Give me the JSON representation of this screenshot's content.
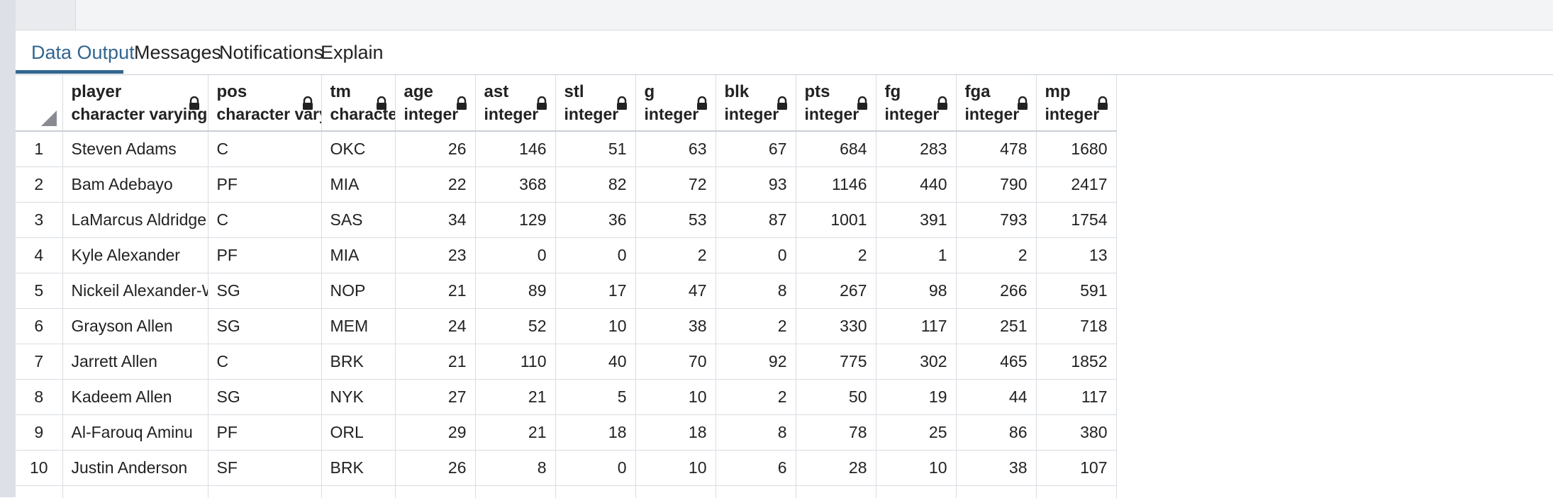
{
  "tabs": [
    {
      "label": "Data Output",
      "active": true
    },
    {
      "label": "Messages",
      "active": false
    },
    {
      "label": "Notifications",
      "active": false
    },
    {
      "label": "Explain",
      "active": false
    }
  ],
  "columns": [
    {
      "name": "player",
      "type": "character varying",
      "align": "left"
    },
    {
      "name": "pos",
      "type": "character varying",
      "align": "left"
    },
    {
      "name": "tm",
      "type": "character va",
      "align": "left"
    },
    {
      "name": "age",
      "type": "integer",
      "align": "right"
    },
    {
      "name": "ast",
      "type": "integer",
      "align": "right"
    },
    {
      "name": "stl",
      "type": "integer",
      "align": "right"
    },
    {
      "name": "g",
      "type": "integer",
      "align": "right"
    },
    {
      "name": "blk",
      "type": "integer",
      "align": "right"
    },
    {
      "name": "pts",
      "type": "integer",
      "align": "right"
    },
    {
      "name": "fg",
      "type": "integer",
      "align": "right"
    },
    {
      "name": "fga",
      "type": "integer",
      "align": "right"
    },
    {
      "name": "mp",
      "type": "integer",
      "align": "right"
    }
  ],
  "rows": [
    {
      "n": "1",
      "cells": [
        "Steven Adams",
        "C",
        "OKC",
        "26",
        "146",
        "51",
        "63",
        "67",
        "684",
        "283",
        "478",
        "1680"
      ]
    },
    {
      "n": "2",
      "cells": [
        "Bam Adebayo",
        "PF",
        "MIA",
        "22",
        "368",
        "82",
        "72",
        "93",
        "1146",
        "440",
        "790",
        "2417"
      ]
    },
    {
      "n": "3",
      "cells": [
        "LaMarcus Aldridge",
        "C",
        "SAS",
        "34",
        "129",
        "36",
        "53",
        "87",
        "1001",
        "391",
        "793",
        "1754"
      ]
    },
    {
      "n": "4",
      "cells": [
        "Kyle Alexander",
        "PF",
        "MIA",
        "23",
        "0",
        "0",
        "2",
        "0",
        "2",
        "1",
        "2",
        "13"
      ]
    },
    {
      "n": "5",
      "cells": [
        "Nickeil Alexander-Walker",
        "SG",
        "NOP",
        "21",
        "89",
        "17",
        "47",
        "8",
        "267",
        "98",
        "266",
        "591"
      ]
    },
    {
      "n": "6",
      "cells": [
        "Grayson Allen",
        "SG",
        "MEM",
        "24",
        "52",
        "10",
        "38",
        "2",
        "330",
        "117",
        "251",
        "718"
      ]
    },
    {
      "n": "7",
      "cells": [
        "Jarrett Allen",
        "C",
        "BRK",
        "21",
        "110",
        "40",
        "70",
        "92",
        "775",
        "302",
        "465",
        "1852"
      ]
    },
    {
      "n": "8",
      "cells": [
        "Kadeem Allen",
        "SG",
        "NYK",
        "27",
        "21",
        "5",
        "10",
        "2",
        "50",
        "19",
        "44",
        "117"
      ]
    },
    {
      "n": "9",
      "cells": [
        "Al-Farouq Aminu",
        "PF",
        "ORL",
        "29",
        "21",
        "18",
        "18",
        "8",
        "78",
        "25",
        "86",
        "380"
      ]
    },
    {
      "n": "10",
      "cells": [
        "Justin Anderson",
        "SF",
        "BRK",
        "26",
        "8",
        "0",
        "10",
        "6",
        "28",
        "10",
        "38",
        "107"
      ]
    }
  ],
  "icons": {
    "lock": "lock-icon",
    "corner": "sort-corner-icon"
  },
  "colors": {
    "accent": "#326690"
  }
}
